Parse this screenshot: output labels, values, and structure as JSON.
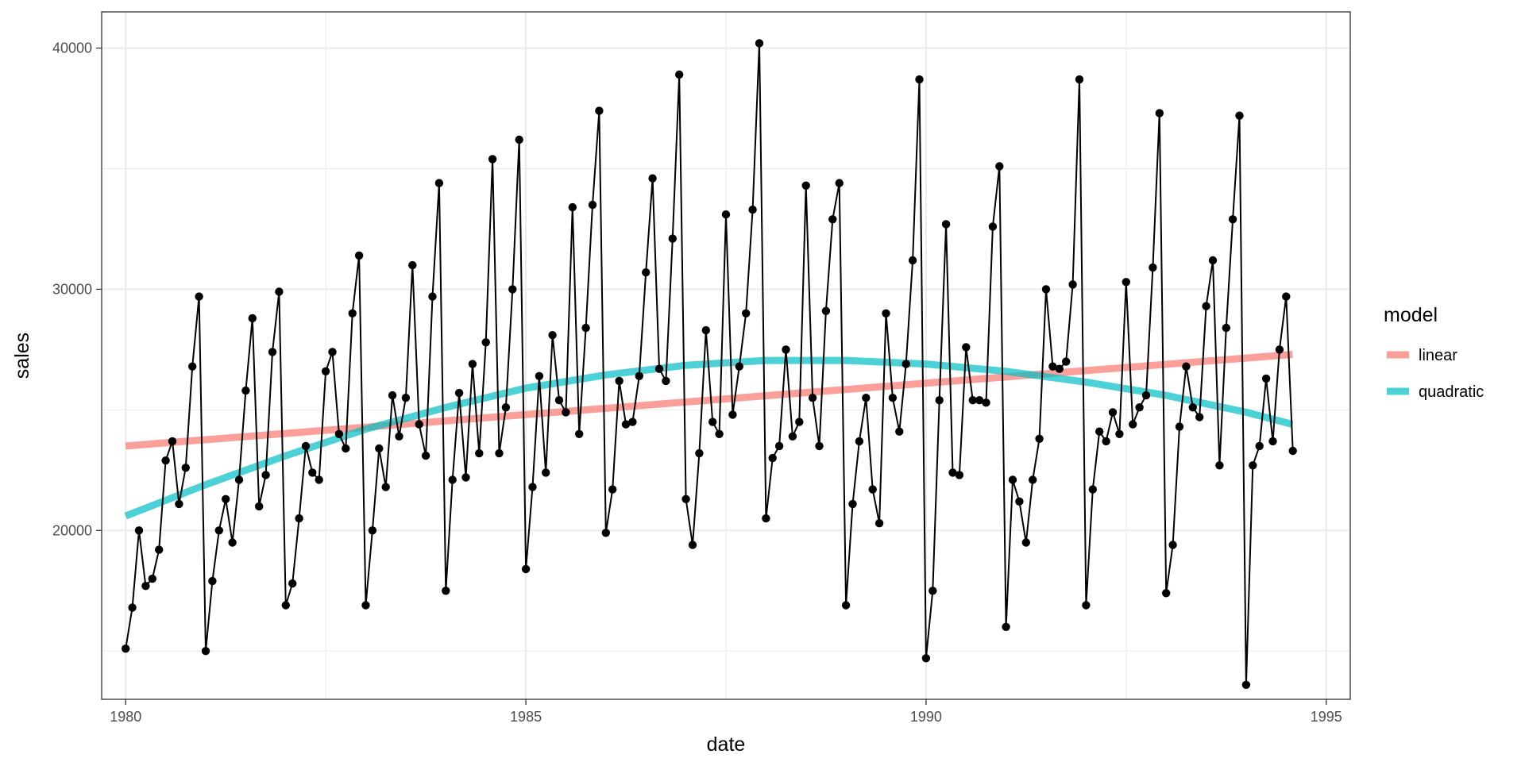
{
  "chart_data": {
    "type": "line",
    "xlabel": "date",
    "ylabel": "sales",
    "xlim": [
      1979.7,
      1995.3
    ],
    "ylim": [
      13000,
      41500
    ],
    "x_ticks": [
      1980,
      1985,
      1990,
      1995
    ],
    "x_tick_labels": [
      "1980",
      "1985",
      "1990",
      "1995"
    ],
    "y_ticks": [
      20000,
      30000,
      40000
    ],
    "y_tick_labels": [
      "20000",
      "30000",
      "40000"
    ],
    "grid": true,
    "legend": {
      "title": "model",
      "placement": "right"
    },
    "observed": {
      "color": "#000000",
      "x_start": 1980.0,
      "step": 0.08333,
      "values": [
        15100,
        16800,
        20000,
        17700,
        18000,
        19200,
        22900,
        23700,
        21100,
        22600,
        26800,
        29700,
        15000,
        17900,
        20000,
        21300,
        19500,
        22100,
        25800,
        28800,
        21000,
        22300,
        27400,
        29900,
        16900,
        17800,
        20500,
        23500,
        22400,
        22100,
        26600,
        27400,
        24000,
        23400,
        29000,
        31400,
        16900,
        20000,
        23400,
        21800,
        25600,
        23900,
        25500,
        31000,
        24400,
        23100,
        29700,
        34400,
        17500,
        22100,
        25700,
        22200,
        26900,
        23200,
        27800,
        35400,
        23200,
        25100,
        30000,
        36200,
        18400,
        21800,
        26400,
        22400,
        28100,
        25400,
        24900,
        33400,
        24000,
        28400,
        33500,
        37400,
        19900,
        21700,
        26200,
        24400,
        24500,
        26400,
        30700,
        34600,
        26700,
        26200,
        32100,
        38900,
        21300,
        19400,
        23200,
        28300,
        24500,
        24000,
        33100,
        24800,
        26800,
        29000,
        33300,
        40200,
        20500,
        23000,
        23500,
        27500,
        23900,
        24500,
        34300,
        25500,
        23500,
        29100,
        32900,
        34400,
        16900,
        21100,
        23700,
        25500,
        21700,
        20300,
        29000,
        25500,
        24100,
        26900,
        31200,
        38700,
        14700,
        17500,
        25400,
        32700,
        22400,
        22300,
        27600,
        25400,
        25400,
        25300,
        32600,
        35100,
        16000,
        22100,
        21200,
        19500,
        22100,
        23800,
        30000,
        26800,
        26700,
        27000,
        30200,
        38700,
        16900,
        21700,
        24100,
        23700,
        24900,
        24000,
        30300,
        24400,
        25100,
        25600,
        30900,
        37300,
        17400,
        19400,
        24300,
        26800,
        25100,
        24700,
        29300,
        31200,
        22700,
        28400,
        32900,
        37200,
        13600,
        22700,
        23500,
        26300,
        23700,
        27500,
        29700,
        23300
      ]
    },
    "series": [
      {
        "name": "linear",
        "color": "#F8766D",
        "x": [
          1980.0,
          1994.58
        ],
        "y": [
          23500,
          27300
        ]
      },
      {
        "name": "quadratic",
        "color": "#00BFC4",
        "x": [
          1980.0,
          1981.0,
          1982.0,
          1983.0,
          1984.0,
          1985.0,
          1986.0,
          1987.0,
          1988.0,
          1989.0,
          1990.0,
          1991.0,
          1992.0,
          1993.0,
          1994.0,
          1994.58
        ],
        "y": [
          20600,
          21900,
          23100,
          24200,
          25100,
          25900,
          26450,
          26850,
          27050,
          27050,
          26900,
          26600,
          26150,
          25600,
          24900,
          24400
        ]
      }
    ]
  }
}
